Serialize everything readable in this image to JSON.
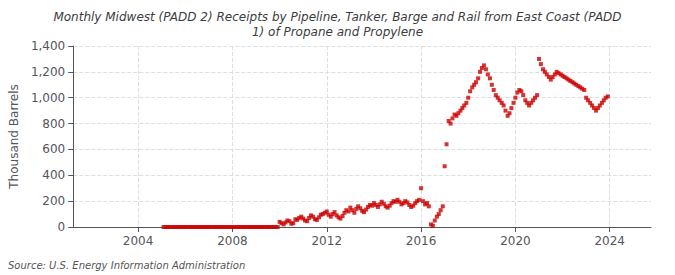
{
  "chart_data": {
    "type": "scatter",
    "title": "Monthly Midwest (PADD 2) Receipts by Pipeline, Tanker, Barge and Rail from East Coast (PADD\n1) of Propane and Propylene",
    "ylabel": "Thousand Barrels",
    "source": "Source: U.S. Energy Information Administration",
    "color": "#cc0000",
    "marker": "square",
    "grid": true,
    "xlim": [
      2001.25,
      2025.75
    ],
    "xticks": [
      2004,
      2008,
      2012,
      2016,
      2020,
      2024
    ],
    "ylim": [
      0,
      1400
    ],
    "yticks": [
      0,
      200,
      400,
      600,
      800,
      {
        "value": 1000,
        "label": "1,000"
      },
      {
        "value": 1200,
        "label": "1,200"
      },
      {
        "value": 1400,
        "label": "1,400"
      }
    ],
    "x": [
      2005.08,
      2005.17,
      2005.25,
      2005.33,
      2005.42,
      2005.5,
      2005.58,
      2005.67,
      2005.75,
      2005.83,
      2005.92,
      2006.0,
      2006.08,
      2006.17,
      2006.25,
      2006.33,
      2006.42,
      2006.5,
      2006.58,
      2006.67,
      2006.75,
      2006.83,
      2006.92,
      2007.0,
      2007.08,
      2007.17,
      2007.25,
      2007.33,
      2007.42,
      2007.5,
      2007.58,
      2007.67,
      2007.75,
      2007.83,
      2007.92,
      2008.0,
      2008.08,
      2008.17,
      2008.25,
      2008.33,
      2008.42,
      2008.5,
      2008.58,
      2008.67,
      2008.75,
      2008.83,
      2008.92,
      2009.0,
      2009.08,
      2009.17,
      2009.25,
      2009.33,
      2009.42,
      2009.5,
      2009.58,
      2009.67,
      2009.75,
      2009.83,
      2009.92,
      2010.0,
      2010.08,
      2010.17,
      2010.25,
      2010.33,
      2010.42,
      2010.5,
      2010.58,
      2010.67,
      2010.75,
      2010.83,
      2010.92,
      2011.0,
      2011.08,
      2011.17,
      2011.25,
      2011.33,
      2011.42,
      2011.5,
      2011.58,
      2011.67,
      2011.75,
      2011.83,
      2011.92,
      2012.0,
      2012.08,
      2012.17,
      2012.25,
      2012.33,
      2012.42,
      2012.5,
      2012.58,
      2012.67,
      2012.75,
      2012.83,
      2012.92,
      2013.0,
      2013.08,
      2013.17,
      2013.25,
      2013.33,
      2013.42,
      2013.5,
      2013.58,
      2013.67,
      2013.75,
      2013.83,
      2013.92,
      2014.0,
      2014.08,
      2014.17,
      2014.25,
      2014.33,
      2014.42,
      2014.5,
      2014.58,
      2014.67,
      2014.75,
      2014.83,
      2014.92,
      2015.0,
      2015.08,
      2015.17,
      2015.25,
      2015.33,
      2015.42,
      2015.5,
      2015.58,
      2015.67,
      2015.75,
      2015.83,
      2015.92,
      2016.0,
      2016.08,
      2016.17,
      2016.25,
      2016.33,
      2016.42,
      2016.5,
      2016.58,
      2016.67,
      2016.75,
      2016.83,
      2016.92,
      2017.0,
      2017.08,
      2017.17,
      2017.25,
      2017.33,
      2017.42,
      2017.5,
      2017.58,
      2017.67,
      2017.75,
      2017.83,
      2017.92,
      2018.0,
      2018.08,
      2018.17,
      2018.25,
      2018.33,
      2018.42,
      2018.5,
      2018.58,
      2018.67,
      2018.75,
      2018.83,
      2018.92,
      2019.0,
      2019.08,
      2019.17,
      2019.25,
      2019.33,
      2019.42,
      2019.5,
      2019.58,
      2019.67,
      2019.75,
      2019.83,
      2019.92,
      2020.0,
      2020.08,
      2020.17,
      2020.25,
      2020.33,
      2020.42,
      2020.5,
      2020.58,
      2020.67,
      2020.75,
      2020.83,
      2020.92,
      2021.0,
      2021.08,
      2021.17,
      2021.25,
      2021.33,
      2021.42,
      2021.5,
      2021.58,
      2021.67,
      2021.75,
      2021.83,
      2021.92,
      2022.0,
      2022.08,
      2022.17,
      2022.25,
      2022.33,
      2022.42,
      2022.5,
      2022.58,
      2022.67,
      2022.75,
      2022.83,
      2022.92,
      2023.0,
      2023.08,
      2023.17,
      2023.25,
      2023.33,
      2023.42,
      2023.5,
      2023.58,
      2023.67,
      2023.75,
      2023.83,
      2023.92
    ],
    "values": [
      0,
      0,
      0,
      0,
      0,
      0,
      0,
      0,
      0,
      0,
      0,
      0,
      0,
      0,
      0,
      0,
      0,
      0,
      0,
      0,
      0,
      0,
      0,
      0,
      0,
      0,
      0,
      0,
      0,
      0,
      0,
      0,
      0,
      0,
      0,
      0,
      0,
      0,
      0,
      0,
      0,
      0,
      0,
      0,
      0,
      0,
      0,
      0,
      0,
      0,
      0,
      0,
      0,
      0,
      0,
      0,
      0,
      0,
      0,
      40,
      30,
      20,
      35,
      50,
      45,
      25,
      30,
      60,
      55,
      70,
      80,
      65,
      50,
      45,
      70,
      90,
      80,
      60,
      55,
      75,
      95,
      100,
      110,
      120,
      95,
      80,
      100,
      115,
      90,
      75,
      65,
      85,
      110,
      130,
      120,
      150,
      130,
      110,
      140,
      160,
      145,
      125,
      115,
      135,
      155,
      170,
      165,
      185,
      170,
      155,
      175,
      195,
      180,
      160,
      150,
      165,
      185,
      200,
      195,
      210,
      195,
      175,
      185,
      200,
      190,
      170,
      155,
      165,
      185,
      200,
      210,
      300,
      200,
      175,
      185,
      160,
      20,
      10,
      50,
      80,
      100,
      130,
      160,
      470,
      640,
      820,
      800,
      840,
      870,
      860,
      880,
      900,
      920,
      940,
      960,
      1000,
      1050,
      1080,
      1100,
      1120,
      1150,
      1200,
      1230,
      1250,
      1220,
      1180,
      1150,
      1100,
      1060,
      1020,
      1000,
      980,
      960,
      940,
      900,
      860,
      880,
      920,
      960,
      1000,
      1040,
      1060,
      1050,
      1020,
      980,
      960,
      940,
      960,
      980,
      1000,
      1020,
      1300,
      1260,
      1220,
      1200,
      1180,
      1160,
      1140,
      1160,
      1180,
      1200,
      1190,
      1180,
      1170,
      1160,
      1150,
      1140,
      1130,
      1120,
      1110,
      1100,
      1090,
      1080,
      1070,
      1060,
      1000,
      980,
      960,
      940,
      920,
      900,
      920,
      940,
      960,
      980,
      1000,
      1010
    ]
  }
}
